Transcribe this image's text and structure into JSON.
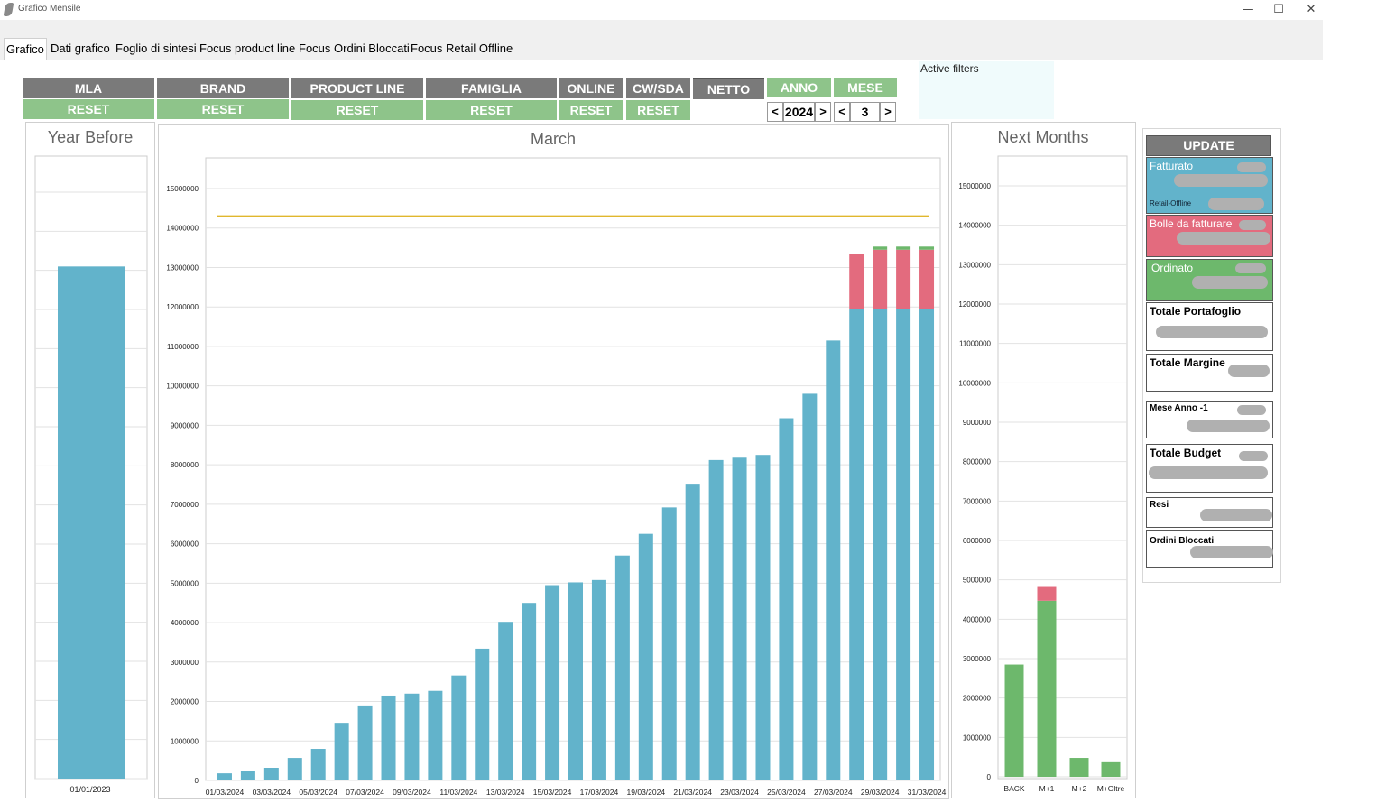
{
  "window": {
    "title": "Grafico Mensile",
    "minimize": "—",
    "maximize": "☐",
    "close": "✕"
  },
  "tabs": [
    {
      "label": "Grafico",
      "active": true
    },
    {
      "label": "Dati grafico"
    },
    {
      "label": "Foglio di sintesi"
    },
    {
      "label": "Focus product line"
    },
    {
      "label": "Focus Ordini Bloccati"
    },
    {
      "label": "Focus Retail Offline"
    }
  ],
  "filters": {
    "mla": "MLA",
    "brand": "BRAND",
    "product_line": "PRODUCT LINE",
    "famiglia": "FAMIGLIA",
    "online": "ONLINE",
    "cwsda": "CW/SDA",
    "netto": "NETTO",
    "anno": "ANNO",
    "mese": "MESE",
    "reset": "RESET",
    "year_value": "2024",
    "month_value": "3",
    "prev": "<",
    "next": ">"
  },
  "active_filters_label": "Active filters",
  "colors": {
    "gray": "#7a7a7a",
    "green": "#8ec48a",
    "blue": "#62b3cb",
    "red": "#e36b7e",
    "dark_green": "#6db86c",
    "budget": "#e0b72e"
  },
  "year_before": {
    "title": "Year Before",
    "category": "01/01/2023",
    "value": 13100000
  },
  "sidebar": {
    "update": "UPDATE",
    "fatturato": "Fatturato",
    "retail_offline": "Retail-Offline",
    "bolle": "Bolle da fatturare",
    "ordinato": "Ordinato",
    "totale_portafoglio": "Totale Portafoglio",
    "totale_margine": "Totale Margine",
    "mese_anno": "Mese Anno -1",
    "totale_budget": "Totale Budget",
    "resi": "Resi",
    "ordini_bloccati": "Ordini Bloccati"
  },
  "chart_data": [
    {
      "type": "bar",
      "title": "Year Before",
      "categories": [
        "01/01/2023"
      ],
      "series": [
        {
          "values": [
            13100000
          ]
        }
      ],
      "ylim": [
        0,
        15000000
      ]
    },
    {
      "type": "bar",
      "title": "March",
      "categories": [
        "01/03/2024",
        "02/03/2024",
        "03/03/2024",
        "04/03/2024",
        "05/03/2024",
        "06/03/2024",
        "07/03/2024",
        "08/03/2024",
        "09/03/2024",
        "10/03/2024",
        "11/03/2024",
        "12/03/2024",
        "13/03/2024",
        "14/03/2024",
        "15/03/2024",
        "16/03/2024",
        "17/03/2024",
        "18/03/2024",
        "19/03/2024",
        "20/03/2024",
        "21/03/2024",
        "22/03/2024",
        "23/03/2024",
        "24/03/2024",
        "25/03/2024",
        "26/03/2024",
        "27/03/2024",
        "28/03/2024",
        "29/03/2024",
        "30/03/2024",
        "31/03/2024"
      ],
      "x_tick_labels": [
        "01/03/2024",
        "03/03/2024",
        "05/03/2024",
        "07/03/2024",
        "09/03/2024",
        "11/03/2024",
        "13/03/2024",
        "15/03/2024",
        "17/03/2024",
        "19/03/2024",
        "21/03/2024",
        "23/03/2024",
        "25/03/2024",
        "27/03/2024",
        "29/03/2024",
        "31/03/2024"
      ],
      "series": [
        {
          "values": [
            180000,
            250000,
            320000,
            570000,
            800000,
            1460000,
            1900000,
            2150000,
            2200000,
            2270000,
            2660000,
            3340000,
            4020000,
            4500000,
            4950000,
            5020000,
            5080000,
            5700000,
            6250000,
            6920000,
            7520000,
            8120000,
            8180000,
            8250000,
            9180000,
            9800000,
            11150000,
            11950000,
            11950000,
            11950000,
            11950000
          ]
        },
        {
          "values": [
            0,
            0,
            0,
            0,
            0,
            0,
            0,
            0,
            0,
            0,
            0,
            0,
            0,
            0,
            0,
            0,
            0,
            0,
            0,
            0,
            0,
            0,
            0,
            0,
            0,
            0,
            0,
            1400000,
            1500000,
            1500000,
            1500000
          ]
        },
        {
          "values": [
            0,
            0,
            0,
            0,
            0,
            0,
            0,
            0,
            0,
            0,
            0,
            0,
            0,
            0,
            0,
            0,
            0,
            0,
            0,
            0,
            0,
            0,
            0,
            0,
            0,
            0,
            0,
            0,
            80000,
            80000,
            80000
          ]
        }
      ],
      "budget_line": 14300000,
      "yticks": [
        "0",
        "1000000",
        "2000000",
        "3000000",
        "4000000",
        "5000000",
        "6000000",
        "7000000",
        "8000000",
        "9000000",
        "10000000",
        "11000000",
        "12000000",
        "13000000",
        "14000000",
        "15000000"
      ],
      "ylim": [
        0,
        15000000
      ]
    },
    {
      "type": "bar",
      "title": "Next Months",
      "categories": [
        "BACK",
        "M+1",
        "M+2",
        "M+Oltre"
      ],
      "series": [
        {
          "values": [
            2850000,
            4470000,
            480000,
            370000
          ]
        },
        {
          "values": [
            0,
            350000,
            0,
            0
          ]
        }
      ],
      "yticks": [
        "0",
        "1000000",
        "2000000",
        "3000000",
        "4000000",
        "5000000",
        "6000000",
        "7000000",
        "8000000",
        "9000000",
        "10000000",
        "11000000",
        "12000000",
        "13000000",
        "14000000",
        "15000000"
      ],
      "ylim": [
        0,
        15000000
      ]
    }
  ]
}
